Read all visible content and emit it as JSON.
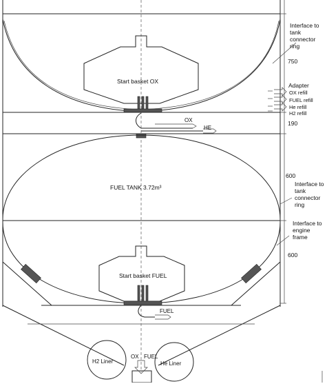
{
  "labels": {
    "interface_connector_upper": [
      "Interface to",
      "tank",
      "connector",
      "ring"
    ],
    "interface_connector_mid": [
      "Interface to",
      "tank",
      "connector",
      "ring"
    ],
    "interface_engine_frame": [
      "Interface to",
      "engine",
      "frame"
    ],
    "start_basket_ox": "Start basket OX",
    "fuel_tank": "FUEL TANK 3.72m³",
    "start_basket_fuel": "Start basket FUEL",
    "adapter": "Adapter",
    "ox_refill": "OX refill",
    "fuel_refill": "FUEL refill",
    "he_refill": "He refill",
    "h2_refill": "H2 refill",
    "flow_ox": "OX",
    "flow_he": "HE",
    "flow_fuel": "FUEL",
    "h2_liner": "H2 Liner",
    "he_liner": "He Liner",
    "bottom_ox": "OX",
    "bottom_fuel": "FUEL"
  },
  "dimensions": {
    "d750": "750",
    "d190": "190",
    "d600_upper": "600",
    "d600_lower": "600"
  },
  "colors": {
    "line": "#222222",
    "background": "#ffffff"
  }
}
